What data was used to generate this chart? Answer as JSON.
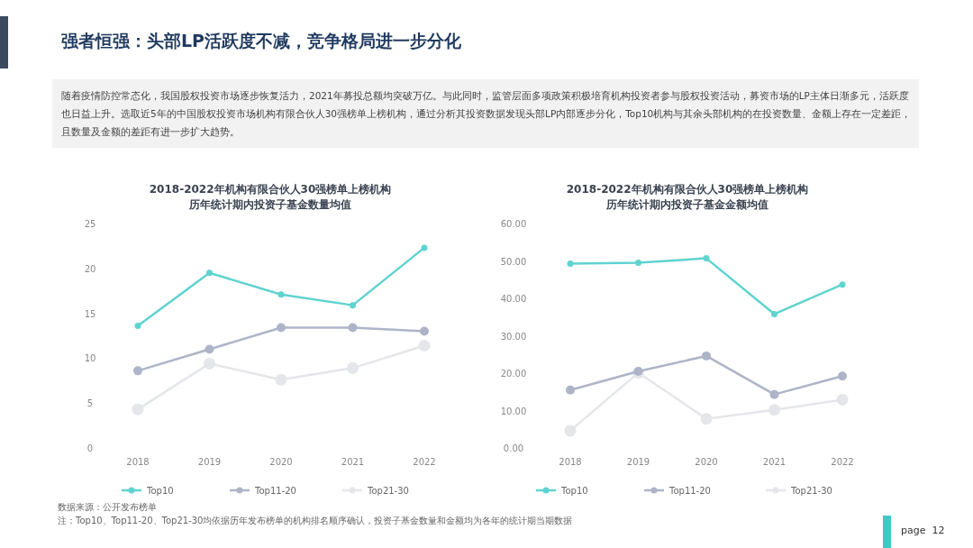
{
  "chart_data": [
    {
      "type": "line",
      "title": "2018-2022年机构有限合伙人30强榜单上榜机构",
      "subtitle": "历年统计期内投资子基金数量均值",
      "annotations": [
        "强者恒强：头部LP活跃度不减，竞争格局进一步分化",
        "随着疫情防控常态化，我国股权投资市场逐步恢复活力，2021年募投总额均突破万亿。与此同时，监管层面多项政策积极培育机构投资者参与股权投资活动，募资市场的LP主体日渐多元，活跃度也日益上升。选取近5年的中国股权投资市场机构有限合伙人30强榜单上榜机构，通过分析其投资数据发现头部LP内部逐步分化，Top10机构与其余头部机构的在投资数量、金额上存在一定差距，且数量及金额的差距有进一步扩大趋势。",
        "数据来源：公开发布榜单",
        "注：Top10、Top11-20、Top21-30均依据历年发布榜单的机构排名顺序确认，投资子基金数量和金额均为各年的统计期当期数据",
        "page  12"
      ],
      "categories": [
        "2018",
        "2019",
        "2020",
        "2021",
        "2022"
      ],
      "series": [
        {
          "name": "Top10",
          "color": "#5fd3cf",
          "values": [
            13.6,
            19.5,
            17.1,
            15.9,
            22.3
          ]
        },
        {
          "name": "Top11-20",
          "color": "#aeb4c8",
          "values": [
            8.6,
            11.0,
            13.4,
            13.4,
            13.0
          ]
        },
        {
          "name": "Top21-30",
          "color": "#e4e6ea",
          "values": [
            4.3,
            9.4,
            7.6,
            8.9,
            11.4
          ]
        }
      ],
      "ylim": [
        0,
        25
      ],
      "yticks": [
        0,
        5,
        10,
        15,
        20,
        25
      ],
      "grid": false,
      "legend": "bottom",
      "marker": "circle",
      "line_style": "solid"
    },
    {
      "type": "line",
      "title": "2018-2022年机构有限合伙人30强榜单上榜机构",
      "subtitle": "历年统计期内投资子基金金额均值",
      "categories": [
        "2018",
        "2019",
        "2020",
        "2021",
        "2022"
      ],
      "series": [
        {
          "name": "Top10",
          "color": "#5fd3cf",
          "values": [
            49.3,
            49.5,
            50.7,
            35.8,
            43.7
          ]
        },
        {
          "name": "Top11-20",
          "color": "#aeb4c8",
          "values": [
            15.5,
            20.5,
            24.6,
            14.3,
            19.2
          ]
        },
        {
          "name": "Top21-30",
          "color": "#e4e6ea",
          "values": [
            4.6,
            20.1,
            7.8,
            10.2,
            12.9
          ]
        }
      ],
      "ylim": [
        0,
        60
      ],
      "yticks": [
        {
          "value": 0,
          "label": "0.00"
        },
        {
          "value": 10,
          "label": "10.00"
        },
        {
          "value": 20,
          "label": "20.00"
        },
        {
          "value": 30,
          "label": "30.00"
        },
        {
          "value": 40,
          "label": "40.00"
        },
        {
          "value": 50,
          "label": "50.00"
        },
        {
          "value": 60,
          "label": "60.00"
        }
      ],
      "grid": false,
      "legend": "bottom",
      "marker": "circle",
      "line_style": "solid"
    }
  ]
}
